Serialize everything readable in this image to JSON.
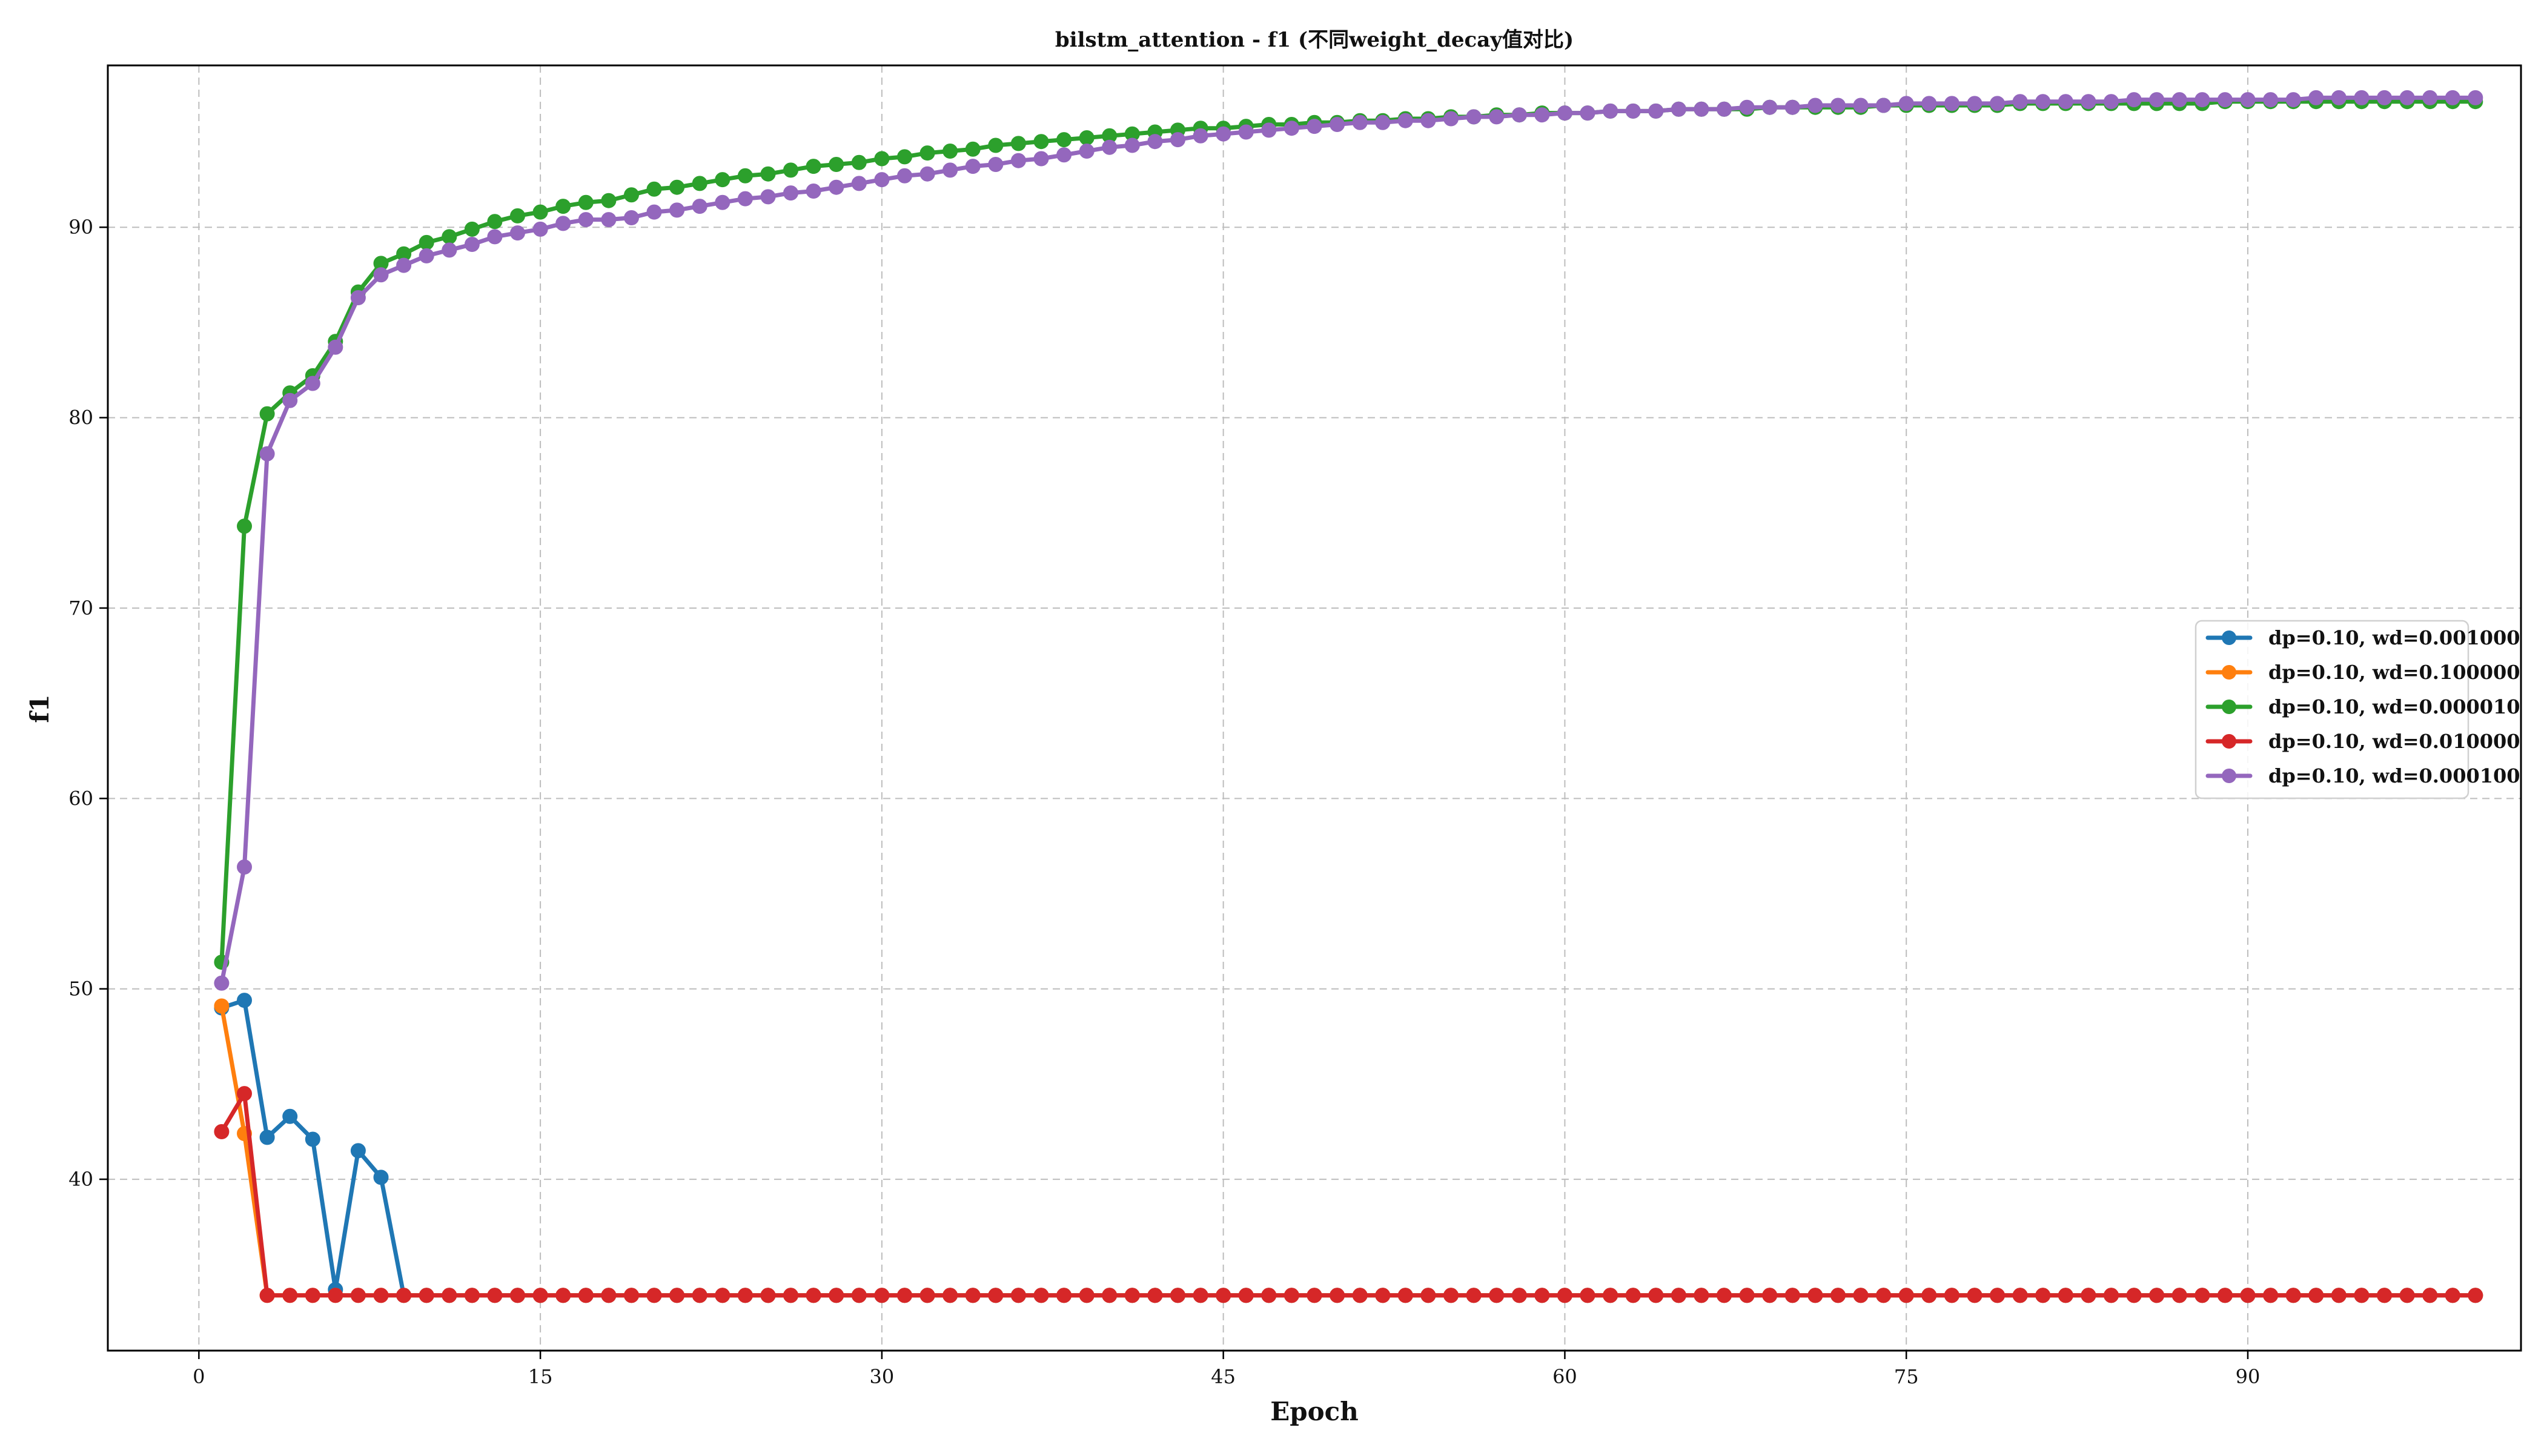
{
  "chart_data": {
    "type": "line",
    "title": "bilstm_attention - f1 (不同weight_decay值对比)",
    "xlabel": "Epoch",
    "ylabel": "f1",
    "xlim": [
      -4,
      102
    ],
    "ylim": [
      31,
      98.5
    ],
    "xticks": [
      0,
      15,
      30,
      45,
      60,
      75,
      90
    ],
    "yticks": [
      40,
      50,
      60,
      70,
      80,
      90
    ],
    "grid": true,
    "legend_position": "center-right",
    "marker": "circle",
    "series": [
      {
        "name": "dp=0.10, wd=0.001000",
        "color": "#1f77b4",
        "x": [
          1,
          2,
          3,
          4,
          5,
          6,
          7,
          8,
          9,
          10,
          11,
          12,
          13,
          14,
          15,
          16,
          17,
          18,
          19,
          20,
          21,
          22,
          23,
          24,
          25,
          26,
          27,
          28,
          29,
          30,
          31,
          32,
          33,
          34,
          35,
          36,
          37,
          38,
          39,
          40,
          41,
          42,
          43,
          44,
          45,
          46,
          47,
          48,
          49,
          50,
          51,
          52,
          53,
          54,
          55,
          56,
          57,
          58,
          59,
          60,
          61,
          62,
          63,
          64,
          65,
          66,
          67,
          68,
          69,
          70,
          71,
          72,
          73,
          74,
          75,
          76,
          77,
          78,
          79,
          80,
          81,
          82,
          83,
          84,
          85,
          86,
          87,
          88,
          89,
          90,
          91,
          92,
          93,
          94,
          95,
          96,
          97,
          98,
          99,
          100
        ],
        "y": [
          49.0,
          49.4,
          42.2,
          43.3,
          42.1,
          34.2,
          41.5,
          40.1,
          33.9,
          33.9,
          33.9,
          33.9,
          33.9,
          33.9,
          33.9,
          33.9,
          33.9,
          33.9,
          33.9,
          33.9,
          33.9,
          33.9,
          33.9,
          33.9,
          33.9,
          33.9,
          33.9,
          33.9,
          33.9,
          33.9,
          33.9,
          33.9,
          33.9,
          33.9,
          33.9,
          33.9,
          33.9,
          33.9,
          33.9,
          33.9,
          33.9,
          33.9,
          33.9,
          33.9,
          33.9,
          33.9,
          33.9,
          33.9,
          33.9,
          33.9,
          33.9,
          33.9,
          33.9,
          33.9,
          33.9,
          33.9,
          33.9,
          33.9,
          33.9,
          33.9,
          33.9,
          33.9,
          33.9,
          33.9,
          33.9,
          33.9,
          33.9,
          33.9,
          33.9,
          33.9,
          33.9,
          33.9,
          33.9,
          33.9,
          33.9,
          33.9,
          33.9,
          33.9,
          33.9,
          33.9,
          33.9,
          33.9,
          33.9,
          33.9,
          33.9,
          33.9,
          33.9,
          33.9,
          33.9,
          33.9,
          33.9,
          33.9,
          33.9,
          33.9,
          33.9,
          33.9,
          33.9,
          33.9,
          33.9,
          33.9
        ]
      },
      {
        "name": "dp=0.10, wd=0.100000",
        "color": "#ff7f0e",
        "x": [
          1,
          2,
          3,
          4,
          5,
          6,
          7,
          8,
          9,
          10,
          11,
          12,
          13,
          14,
          15,
          16,
          17,
          18,
          19,
          20,
          21,
          22,
          23,
          24,
          25,
          26,
          27,
          28,
          29,
          30,
          31,
          32,
          33,
          34,
          35,
          36,
          37,
          38,
          39,
          40,
          41,
          42,
          43,
          44,
          45,
          46,
          47,
          48,
          49,
          50,
          51,
          52,
          53,
          54,
          55,
          56,
          57,
          58,
          59,
          60,
          61,
          62,
          63,
          64,
          65,
          66,
          67,
          68,
          69,
          70,
          71,
          72,
          73,
          74,
          75,
          76,
          77,
          78,
          79,
          80,
          81,
          82,
          83,
          84,
          85,
          86,
          87,
          88,
          89,
          90,
          91,
          92,
          93,
          94,
          95,
          96,
          97,
          98,
          99,
          100
        ],
        "y": [
          49.1,
          42.4,
          33.9,
          33.9,
          33.9,
          33.9,
          33.9,
          33.9,
          33.9,
          33.9,
          33.9,
          33.9,
          33.9,
          33.9,
          33.9,
          33.9,
          33.9,
          33.9,
          33.9,
          33.9,
          33.9,
          33.9,
          33.9,
          33.9,
          33.9,
          33.9,
          33.9,
          33.9,
          33.9,
          33.9,
          33.9,
          33.9,
          33.9,
          33.9,
          33.9,
          33.9,
          33.9,
          33.9,
          33.9,
          33.9,
          33.9,
          33.9,
          33.9,
          33.9,
          33.9,
          33.9,
          33.9,
          33.9,
          33.9,
          33.9,
          33.9,
          33.9,
          33.9,
          33.9,
          33.9,
          33.9,
          33.9,
          33.9,
          33.9,
          33.9,
          33.9,
          33.9,
          33.9,
          33.9,
          33.9,
          33.9,
          33.9,
          33.9,
          33.9,
          33.9,
          33.9,
          33.9,
          33.9,
          33.9,
          33.9,
          33.9,
          33.9,
          33.9,
          33.9,
          33.9,
          33.9,
          33.9,
          33.9,
          33.9,
          33.9,
          33.9,
          33.9,
          33.9,
          33.9,
          33.9,
          33.9,
          33.9,
          33.9,
          33.9,
          33.9,
          33.9,
          33.9,
          33.9,
          33.9,
          33.9
        ]
      },
      {
        "name": "dp=0.10, wd=0.000010",
        "color": "#2ca02c",
        "x": [
          1,
          2,
          3,
          4,
          5,
          6,
          7,
          8,
          9,
          10,
          11,
          12,
          13,
          14,
          15,
          16,
          17,
          18,
          19,
          20,
          21,
          22,
          23,
          24,
          25,
          26,
          27,
          28,
          29,
          30,
          31,
          32,
          33,
          34,
          35,
          36,
          37,
          38,
          39,
          40,
          41,
          42,
          43,
          44,
          45,
          46,
          47,
          48,
          49,
          50,
          51,
          52,
          53,
          54,
          55,
          56,
          57,
          58,
          59,
          60,
          61,
          62,
          63,
          64,
          65,
          66,
          67,
          68,
          69,
          70,
          71,
          72,
          73,
          74,
          75,
          76,
          77,
          78,
          79,
          80,
          81,
          82,
          83,
          84,
          85,
          86,
          87,
          88,
          89,
          90,
          91,
          92,
          93,
          94,
          95,
          96,
          97,
          98,
          99,
          100
        ],
        "y": [
          51.4,
          74.3,
          80.2,
          81.3,
          82.2,
          84.0,
          86.6,
          88.1,
          88.6,
          89.2,
          89.5,
          89.9,
          90.3,
          90.6,
          90.8,
          91.1,
          91.3,
          91.4,
          91.7,
          92.0,
          92.1,
          92.3,
          92.5,
          92.7,
          92.8,
          93.0,
          93.2,
          93.3,
          93.4,
          93.6,
          93.7,
          93.9,
          94.0,
          94.1,
          94.3,
          94.4,
          94.5,
          94.6,
          94.7,
          94.8,
          94.9,
          95.0,
          95.1,
          95.2,
          95.2,
          95.3,
          95.4,
          95.4,
          95.5,
          95.5,
          95.6,
          95.6,
          95.7,
          95.7,
          95.8,
          95.8,
          95.9,
          95.9,
          96.0,
          96.0,
          96.0,
          96.1,
          96.1,
          96.1,
          96.2,
          96.2,
          96.2,
          96.2,
          96.3,
          96.3,
          96.3,
          96.3,
          96.3,
          96.4,
          96.4,
          96.4,
          96.4,
          96.4,
          96.4,
          96.5,
          96.5,
          96.5,
          96.5,
          96.5,
          96.5,
          96.5,
          96.5,
          96.5,
          96.6,
          96.6,
          96.6,
          96.6,
          96.6,
          96.6,
          96.6,
          96.6,
          96.6,
          96.6,
          96.6,
          96.6
        ]
      },
      {
        "name": "dp=0.10, wd=0.010000",
        "color": "#d62728",
        "x": [
          1,
          2,
          3,
          4,
          5,
          6,
          7,
          8,
          9,
          10,
          11,
          12,
          13,
          14,
          15,
          16,
          17,
          18,
          19,
          20,
          21,
          22,
          23,
          24,
          25,
          26,
          27,
          28,
          29,
          30,
          31,
          32,
          33,
          34,
          35,
          36,
          37,
          38,
          39,
          40,
          41,
          42,
          43,
          44,
          45,
          46,
          47,
          48,
          49,
          50,
          51,
          52,
          53,
          54,
          55,
          56,
          57,
          58,
          59,
          60,
          61,
          62,
          63,
          64,
          65,
          66,
          67,
          68,
          69,
          70,
          71,
          72,
          73,
          74,
          75,
          76,
          77,
          78,
          79,
          80,
          81,
          82,
          83,
          84,
          85,
          86,
          87,
          88,
          89,
          90,
          91,
          92,
          93,
          94,
          95,
          96,
          97,
          98,
          99,
          100
        ],
        "y": [
          42.5,
          44.5,
          33.9,
          33.9,
          33.9,
          33.9,
          33.9,
          33.9,
          33.9,
          33.9,
          33.9,
          33.9,
          33.9,
          33.9,
          33.9,
          33.9,
          33.9,
          33.9,
          33.9,
          33.9,
          33.9,
          33.9,
          33.9,
          33.9,
          33.9,
          33.9,
          33.9,
          33.9,
          33.9,
          33.9,
          33.9,
          33.9,
          33.9,
          33.9,
          33.9,
          33.9,
          33.9,
          33.9,
          33.9,
          33.9,
          33.9,
          33.9,
          33.9,
          33.9,
          33.9,
          33.9,
          33.9,
          33.9,
          33.9,
          33.9,
          33.9,
          33.9,
          33.9,
          33.9,
          33.9,
          33.9,
          33.9,
          33.9,
          33.9,
          33.9,
          33.9,
          33.9,
          33.9,
          33.9,
          33.9,
          33.9,
          33.9,
          33.9,
          33.9,
          33.9,
          33.9,
          33.9,
          33.9,
          33.9,
          33.9,
          33.9,
          33.9,
          33.9,
          33.9,
          33.9,
          33.9,
          33.9,
          33.9,
          33.9,
          33.9,
          33.9,
          33.9,
          33.9,
          33.9,
          33.9,
          33.9,
          33.9,
          33.9,
          33.9,
          33.9,
          33.9,
          33.9,
          33.9,
          33.9,
          33.9
        ]
      },
      {
        "name": "dp=0.10, wd=0.000100",
        "color": "#9467bd",
        "x": [
          1,
          2,
          3,
          4,
          5,
          6,
          7,
          8,
          9,
          10,
          11,
          12,
          13,
          14,
          15,
          16,
          17,
          18,
          19,
          20,
          21,
          22,
          23,
          24,
          25,
          26,
          27,
          28,
          29,
          30,
          31,
          32,
          33,
          34,
          35,
          36,
          37,
          38,
          39,
          40,
          41,
          42,
          43,
          44,
          45,
          46,
          47,
          48,
          49,
          50,
          51,
          52,
          53,
          54,
          55,
          56,
          57,
          58,
          59,
          60,
          61,
          62,
          63,
          64,
          65,
          66,
          67,
          68,
          69,
          70,
          71,
          72,
          73,
          74,
          75,
          76,
          77,
          78,
          79,
          80,
          81,
          82,
          83,
          84,
          85,
          86,
          87,
          88,
          89,
          90,
          91,
          92,
          93,
          94,
          95,
          96,
          97,
          98,
          99,
          100
        ],
        "y": [
          50.3,
          56.4,
          78.1,
          80.9,
          81.8,
          83.7,
          86.3,
          87.5,
          88.0,
          88.5,
          88.8,
          89.1,
          89.5,
          89.7,
          89.9,
          90.2,
          90.4,
          90.4,
          90.5,
          90.8,
          90.9,
          91.1,
          91.3,
          91.5,
          91.6,
          91.8,
          91.9,
          92.1,
          92.3,
          92.5,
          92.7,
          92.8,
          93.0,
          93.2,
          93.3,
          93.5,
          93.6,
          93.8,
          94.0,
          94.2,
          94.3,
          94.5,
          94.6,
          94.8,
          94.9,
          95.0,
          95.1,
          95.2,
          95.3,
          95.4,
          95.5,
          95.5,
          95.6,
          95.6,
          95.7,
          95.8,
          95.8,
          95.9,
          95.9,
          96.0,
          96.0,
          96.1,
          96.1,
          96.1,
          96.2,
          96.2,
          96.2,
          96.3,
          96.3,
          96.3,
          96.4,
          96.4,
          96.4,
          96.4,
          96.5,
          96.5,
          96.5,
          96.5,
          96.5,
          96.6,
          96.6,
          96.6,
          96.6,
          96.6,
          96.7,
          96.7,
          96.7,
          96.7,
          96.7,
          96.7,
          96.7,
          96.7,
          96.8,
          96.8,
          96.8,
          96.8,
          96.8,
          96.8,
          96.8,
          96.8
        ]
      }
    ]
  }
}
